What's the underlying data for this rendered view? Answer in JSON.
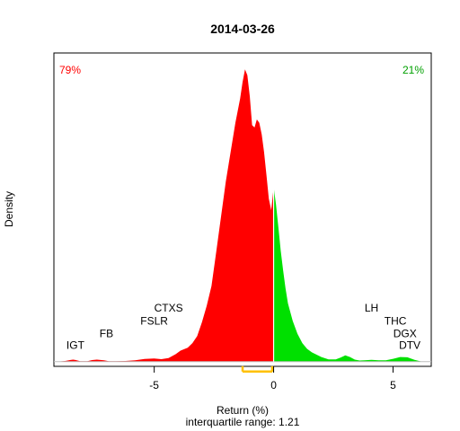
{
  "chart_data": {
    "type": "area",
    "title": "2014-03-26",
    "xlabel": "Return (%)",
    "ylabel": "Density",
    "subtitle": "interquartile range: 1.21",
    "xlim": [
      -9.2,
      6.6
    ],
    "ylim": [
      -0.004,
      0.265
    ],
    "xticks": [
      -5,
      0,
      5
    ],
    "xtick_labels": [
      "-5",
      "0",
      "5"
    ],
    "split_x": 0,
    "neg_color": "#ff0000",
    "pos_color": "#00e000",
    "iqr_color": "#ffc000",
    "neg_pct": "79%",
    "pos_pct": "21%",
    "iqr": [
      -1.3,
      -0.06
    ],
    "density": {
      "x": [
        -9.0,
        -8.7,
        -8.5,
        -8.4,
        -8.3,
        -8.1,
        -7.8,
        -7.6,
        -7.4,
        -7.1,
        -6.9,
        -6.6,
        -6.2,
        -5.8,
        -5.4,
        -5.0,
        -4.7,
        -4.4,
        -4.1,
        -3.9,
        -3.6,
        -3.4,
        -3.2,
        -3.0,
        -2.8,
        -2.6,
        -2.4,
        -2.2,
        -2.0,
        -1.8,
        -1.6,
        -1.4,
        -1.3,
        -1.2,
        -1.1,
        -1.0,
        -0.9,
        -0.8,
        -0.7,
        -0.6,
        -0.5,
        -0.4,
        -0.3,
        -0.2,
        -0.1,
        0.0,
        0.1,
        0.2,
        0.3,
        0.4,
        0.5,
        0.6,
        0.8,
        1.0,
        1.2,
        1.4,
        1.6,
        1.8,
        2.0,
        2.3,
        2.6,
        2.8,
        3.0,
        3.2,
        3.4,
        3.6,
        3.8,
        4.1,
        4.4,
        4.7,
        5.0,
        5.3,
        5.6,
        5.9,
        6.2
      ],
      "y": [
        0.0,
        0.0007,
        0.0015,
        0.0018,
        0.0015,
        0.0005,
        0.0004,
        0.0014,
        0.0018,
        0.0012,
        0.0004,
        0.0004,
        0.0006,
        0.0012,
        0.0024,
        0.0028,
        0.0022,
        0.0032,
        0.0065,
        0.0095,
        0.012,
        0.016,
        0.022,
        0.034,
        0.048,
        0.065,
        0.095,
        0.125,
        0.155,
        0.18,
        0.205,
        0.226,
        0.24,
        0.251,
        0.246,
        0.228,
        0.203,
        0.201,
        0.208,
        0.205,
        0.195,
        0.18,
        0.16,
        0.14,
        0.13,
        0.15,
        0.135,
        0.115,
        0.095,
        0.078,
        0.063,
        0.05,
        0.035,
        0.024,
        0.016,
        0.011,
        0.008,
        0.006,
        0.004,
        0.002,
        0.002,
        0.0035,
        0.0055,
        0.004,
        0.0018,
        0.001,
        0.0012,
        0.0016,
        0.0012,
        0.0012,
        0.0025,
        0.004,
        0.0038,
        0.0016,
        0.0
      ]
    },
    "annotations": [
      {
        "text": "IGT",
        "x": -8.3,
        "y": 0.011
      },
      {
        "text": "FB",
        "x": -7.0,
        "y": 0.021
      },
      {
        "text": "FSLR",
        "x": -5.0,
        "y": 0.032
      },
      {
        "text": "CTXS",
        "x": -4.4,
        "y": 0.043
      },
      {
        "text": "LH",
        "x": 4.1,
        "y": 0.043
      },
      {
        "text": "THC",
        "x": 5.1,
        "y": 0.032
      },
      {
        "text": "DGX",
        "x": 5.5,
        "y": 0.021
      },
      {
        "text": "DTV",
        "x": 5.7,
        "y": 0.011
      }
    ]
  }
}
